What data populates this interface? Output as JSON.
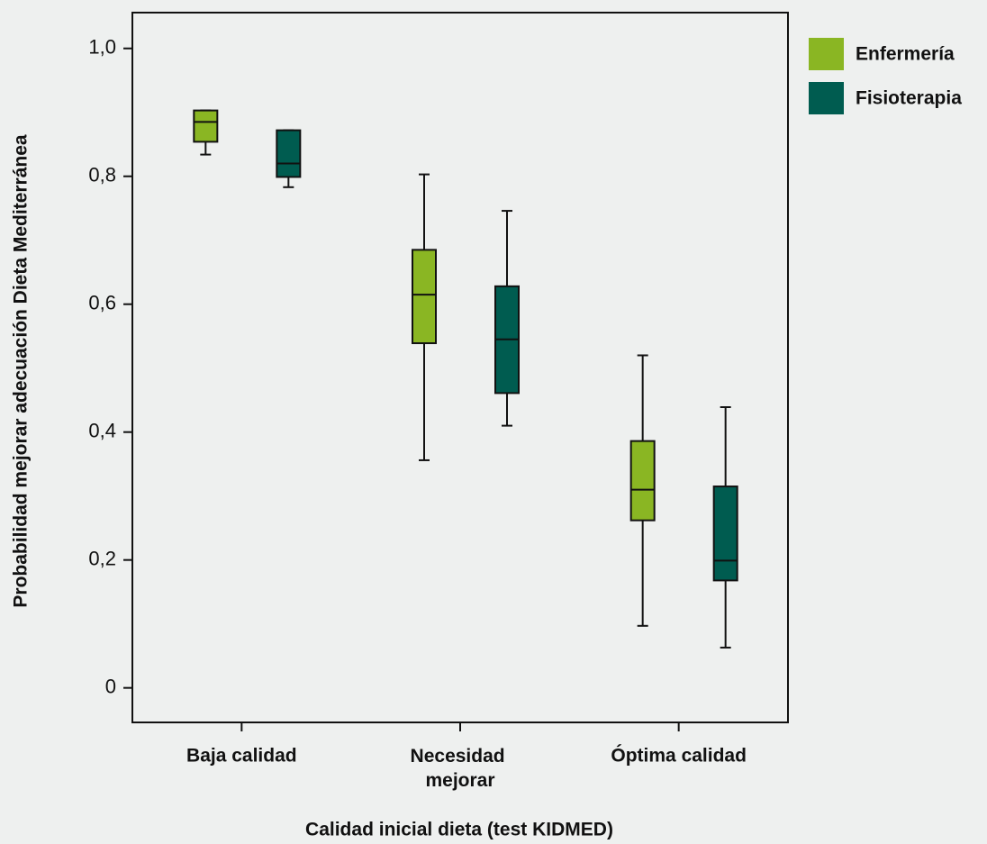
{
  "chart_data": {
    "type": "box",
    "x_label": "Calidad inicial dieta (test KIDMED)",
    "y_label": "Probabilidad mejorar adecuación Dieta Mediterránea",
    "categories": [
      "Baja calidad",
      "Necesidad mejorar",
      "Óptima calidad"
    ],
    "series": [
      {
        "name": "Enfermería",
        "color": "#8ab623",
        "values": [
          {
            "min": 0.834,
            "q1": 0.854,
            "median": 0.885,
            "q3": 0.903,
            "max": 0.903
          },
          {
            "min": 0.356,
            "q1": 0.539,
            "median": 0.615,
            "q3": 0.685,
            "max": 0.803
          },
          {
            "min": 0.097,
            "q1": 0.262,
            "median": 0.31,
            "q3": 0.386,
            "max": 0.52
          }
        ]
      },
      {
        "name": "Fisioterapia",
        "color": "#005c50",
        "values": [
          {
            "min": 0.783,
            "q1": 0.799,
            "median": 0.82,
            "q3": 0.872,
            "max": 0.872
          },
          {
            "min": 0.41,
            "q1": 0.461,
            "median": 0.545,
            "q3": 0.628,
            "max": 0.746
          },
          {
            "min": 0.063,
            "q1": 0.168,
            "median": 0.199,
            "q3": 0.315,
            "max": 0.439
          }
        ]
      }
    ],
    "ylim": [
      -0.054,
      1.056
    ],
    "yticks": [
      0,
      {
        "value": 0.2,
        "label": "0,2"
      },
      {
        "value": 0.4,
        "label": "0,4"
      },
      {
        "value": 0.6,
        "label": "0,6"
      },
      {
        "value": 0.8,
        "label": "0,8"
      },
      {
        "value": 1.0,
        "label": "1,0"
      }
    ],
    "legend": "right"
  }
}
